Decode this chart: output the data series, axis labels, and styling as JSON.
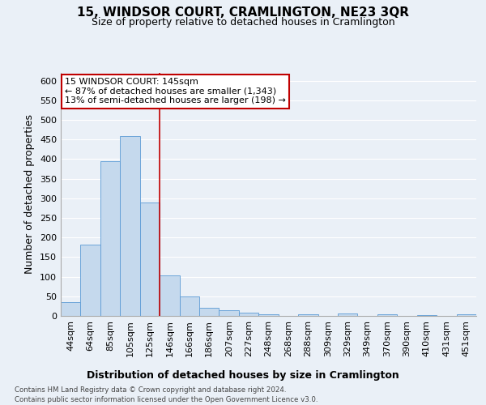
{
  "title": "15, WINDSOR COURT, CRAMLINGTON, NE23 3QR",
  "subtitle": "Size of property relative to detached houses in Cramlington",
  "xlabel": "Distribution of detached houses by size in Cramlington",
  "ylabel": "Number of detached properties",
  "footer_line1": "Contains HM Land Registry data © Crown copyright and database right 2024.",
  "footer_line2": "Contains public sector information licensed under the Open Government Licence v3.0.",
  "bin_labels": [
    "44sqm",
    "64sqm",
    "85sqm",
    "105sqm",
    "125sqm",
    "146sqm",
    "166sqm",
    "186sqm",
    "207sqm",
    "227sqm",
    "248sqm",
    "268sqm",
    "288sqm",
    "309sqm",
    "329sqm",
    "349sqm",
    "370sqm",
    "390sqm",
    "410sqm",
    "431sqm",
    "451sqm"
  ],
  "bar_values": [
    35,
    182,
    395,
    458,
    290,
    103,
    50,
    20,
    14,
    8,
    5,
    0,
    4,
    0,
    6,
    0,
    4,
    0,
    3,
    0,
    4
  ],
  "bar_color": "#c5d9ed",
  "bar_edge_color": "#5b9bd5",
  "vline_color": "#c00000",
  "vline_x": 4.5,
  "annotation_text_line1": "15 WINDSOR COURT: 145sqm",
  "annotation_text_line2": "← 87% of detached houses are smaller (1,343)",
  "annotation_text_line3": "13% of semi-detached houses are larger (198) →",
  "annotation_box_color": "#ffffff",
  "annotation_box_edge_color": "#c00000",
  "ylim": [
    0,
    620
  ],
  "yticks": [
    0,
    50,
    100,
    150,
    200,
    250,
    300,
    350,
    400,
    450,
    500,
    550,
    600
  ],
  "background_color": "#eaf0f7",
  "plot_background_color": "#eaf0f7",
  "grid_color": "#ffffff",
  "title_fontsize": 11,
  "subtitle_fontsize": 9,
  "xlabel_fontsize": 9,
  "ylabel_fontsize": 9,
  "tick_fontsize": 8,
  "annotation_fontsize": 8
}
